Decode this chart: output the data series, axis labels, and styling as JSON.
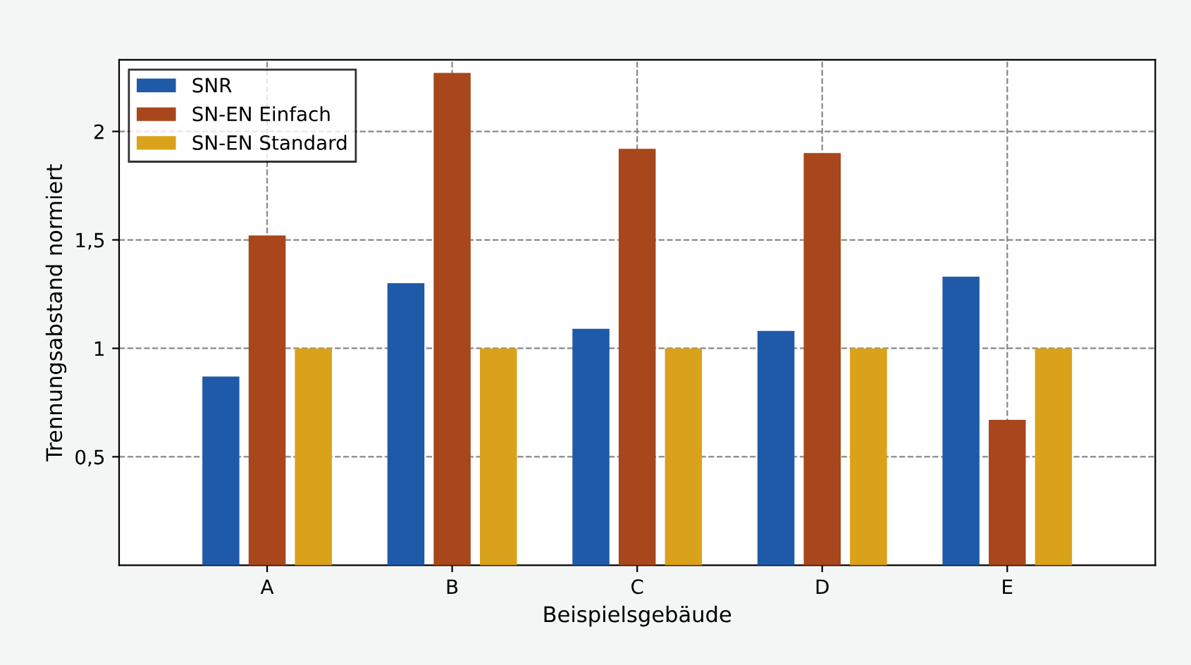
{
  "chart_data": {
    "type": "bar",
    "xlabel": "Beispielsgebäude",
    "ylabel": "Trennungsabstand normiert",
    "categories": [
      "A",
      "B",
      "C",
      "D",
      "E"
    ],
    "series": [
      {
        "name": "SNR",
        "color": "#1f5aa8",
        "values": [
          0.87,
          1.3,
          1.09,
          1.08,
          1.33
        ]
      },
      {
        "name": "SN-EN Einfach",
        "color": "#a8461c",
        "values": [
          1.52,
          2.27,
          1.92,
          1.9,
          0.67
        ]
      },
      {
        "name": "SN-EN Standard",
        "color": "#d9a21a",
        "values": [
          1.0,
          1.0,
          1.0,
          1.0,
          1.0
        ]
      }
    ],
    "ylim": [
      0,
      2.33
    ],
    "yticks": [
      {
        "value": 0.5,
        "label": "0,5"
      },
      {
        "value": 1,
        "label": "1"
      },
      {
        "value": 1.5,
        "label": "1,5"
      },
      {
        "value": 2,
        "label": "2"
      }
    ],
    "grid": true,
    "legend": "top left"
  }
}
